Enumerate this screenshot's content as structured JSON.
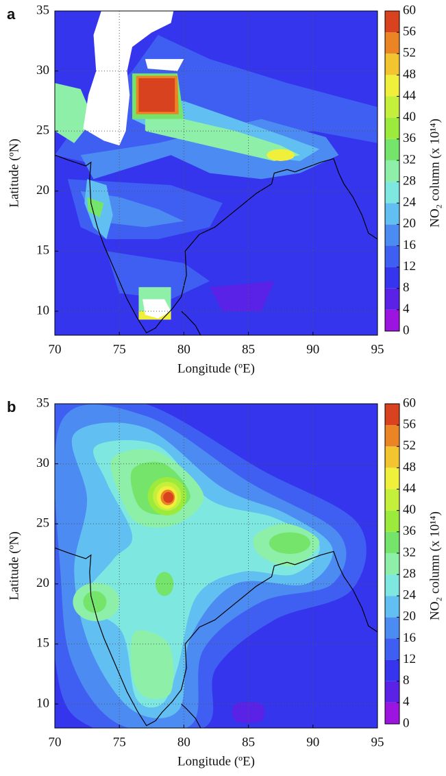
{
  "chart_data": [
    {
      "type": "contour",
      "panel_label": "a",
      "xlabel": "Longitude (ºE)",
      "ylabel": "Latitude (ºN)",
      "xlim": [
        70,
        95
      ],
      "ylim": [
        8,
        35
      ],
      "xticks": [
        70,
        75,
        80,
        85,
        90,
        95
      ],
      "yticks": [
        10,
        15,
        20,
        25,
        30,
        35
      ],
      "grid": true,
      "colorbar": {
        "label": "NO₂ column (x 10¹⁴)",
        "levels": [
          0,
          4,
          8,
          12,
          16,
          20,
          24,
          28,
          32,
          36,
          40,
          44,
          48,
          52,
          56,
          60
        ],
        "colors": [
          "#9b14e0",
          "#5a22e6",
          "#3535ee",
          "#3f5ff2",
          "#4c8cf2",
          "#62bff2",
          "#7ee8e0",
          "#8ef0a8",
          "#74e46a",
          "#9cea3c",
          "#c4f03c",
          "#f0f03c",
          "#f2c430",
          "#ea8424",
          "#d8421e"
        ]
      }
    },
    {
      "type": "contour",
      "panel_label": "b",
      "xlabel": "Longitude (ºE)",
      "ylabel": "Latitude (ºN)",
      "xlim": [
        70,
        95
      ],
      "ylim": [
        8,
        35
      ],
      "xticks": [
        70,
        75,
        80,
        85,
        90,
        95
      ],
      "yticks": [
        10,
        15,
        20,
        25,
        30,
        35
      ],
      "grid": true,
      "colorbar": {
        "label": "NO₂ column (x 10¹⁴)",
        "levels": [
          0,
          4,
          8,
          12,
          16,
          20,
          24,
          28,
          32,
          36,
          40,
          44,
          48,
          52,
          56,
          60
        ],
        "colors": [
          "#9b14e0",
          "#5a22e6",
          "#3535ee",
          "#3f5ff2",
          "#4c8cf2",
          "#62bff2",
          "#7ee8e0",
          "#8ef0a8",
          "#74e46a",
          "#9cea3c",
          "#c4f03c",
          "#f0f03c",
          "#f2c430",
          "#ea8424",
          "#d8421e"
        ]
      }
    }
  ]
}
